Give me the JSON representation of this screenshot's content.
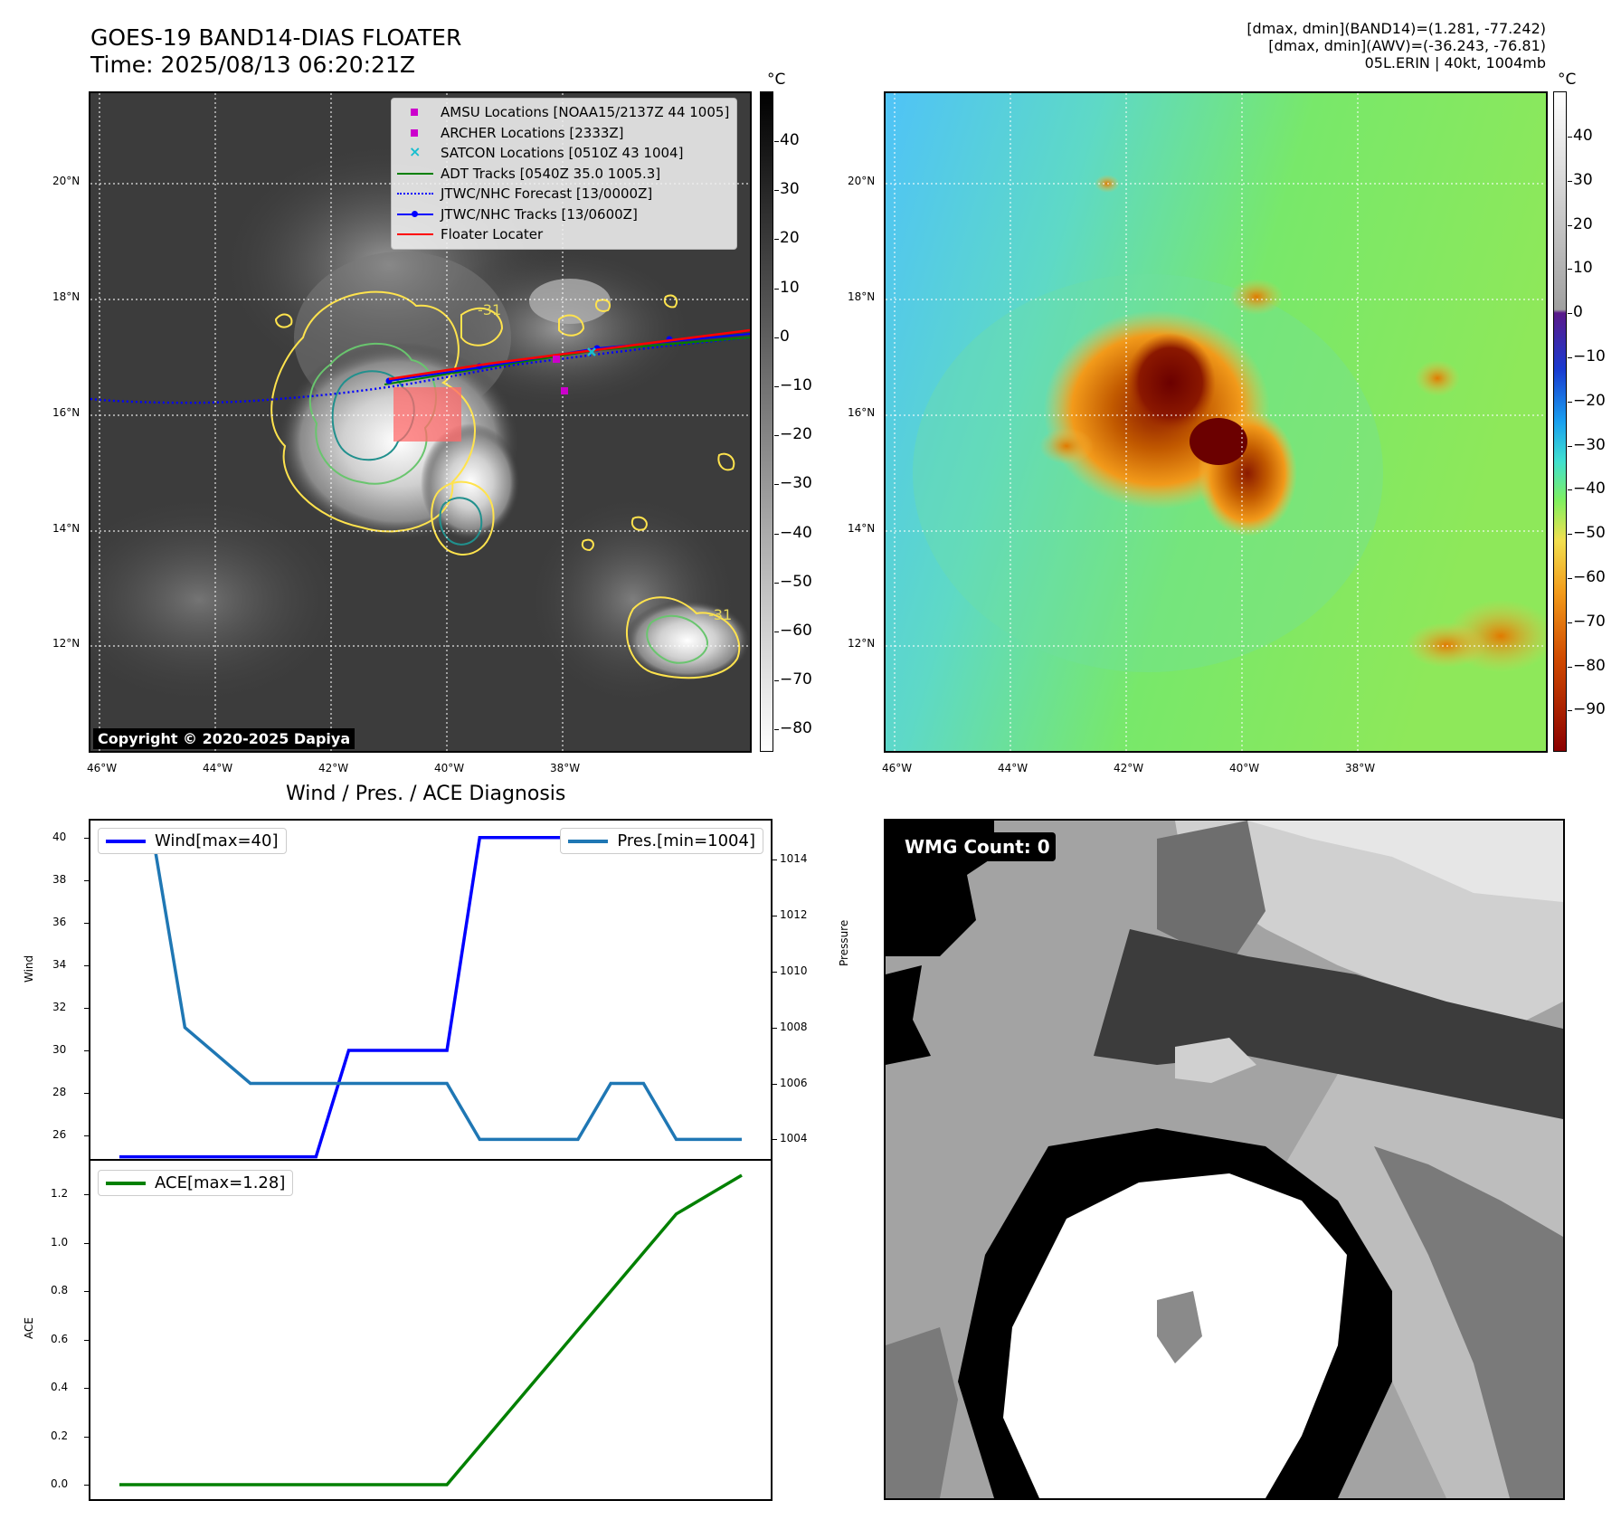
{
  "header": {
    "title_line1": "GOES-19 BAND14-DIAS FLOATER",
    "title_line2": "Time: 2025/08/13 06:20:21Z",
    "right_line1": "[dmax, dmin](BAND14)=(1.281, -77.242)",
    "right_line2": "[dmax, dmin](AWV)=(-36.243, -76.81)",
    "right_line3": "05L.ERIN | 40kt, 1004mb"
  },
  "map1": {
    "legend": [
      {
        "label": "AMSU Locations [NOAA15/2137Z 44 1005]",
        "icon": "square-marker",
        "color": "#cc00cc"
      },
      {
        "label": "ARCHER Locations [2333Z]",
        "icon": "square-marker",
        "color": "#cc00cc"
      },
      {
        "label": "SATCON Locations [0510Z 43 1004]",
        "icon": "x-marker",
        "color": "#17becf"
      },
      {
        "label": "ADT Tracks [0540Z 35.0 1005.3]",
        "icon": "solid-line",
        "color": "#008000"
      },
      {
        "label": "JTWC/NHC Forecast [13/0000Z]",
        "icon": "dotted-line",
        "color": "#0000ff"
      },
      {
        "label": "JTWC/NHC Tracks [13/0600Z]",
        "icon": "dot-line",
        "color": "#0000ff"
      },
      {
        "label": "Floater Locater",
        "icon": "solid-line",
        "color": "#ff0000"
      }
    ],
    "copyright": "Copyright © 2020-2025 Dapiya",
    "contour_label_1": "-31",
    "contour_label_2": "-31",
    "cb_unit": "°C",
    "cb_ticks": [
      "40",
      "30",
      "20",
      "10",
      "0",
      "−10",
      "−20",
      "−30",
      "−40",
      "−50",
      "−60",
      "−70",
      "−80"
    ]
  },
  "map2": {
    "cb_unit": "°C",
    "cb_ticks": [
      "40",
      "30",
      "20",
      "10",
      "0",
      "−10",
      "−20",
      "−30",
      "−40",
      "−50",
      "−60",
      "−70",
      "−80",
      "−90"
    ]
  },
  "axes": {
    "lat_labels": [
      "20°N",
      "18°N",
      "16°N",
      "14°N",
      "12°N"
    ],
    "lon_labels": [
      "46°W",
      "44°W",
      "42°W",
      "40°W",
      "38°W"
    ]
  },
  "chart_data": [
    {
      "type": "line",
      "title": "Wind / Pres. / ACE Diagnosis",
      "ylabel": "Wind",
      "y2label": "Pressure",
      "ylim": [
        24.9,
        40.8
      ],
      "y2lim": [
        1003.3,
        1015.4
      ],
      "yticks": [
        26,
        28,
        30,
        32,
        34,
        36,
        38,
        40
      ],
      "y2ticks": [
        1004,
        1006,
        1008,
        1010,
        1012,
        1014
      ],
      "x": [
        0,
        1,
        2,
        3,
        4,
        5,
        6,
        7,
        8,
        9,
        10,
        11,
        12,
        13,
        14,
        15,
        16,
        17,
        18,
        19
      ],
      "series": [
        {
          "name": "Wind[max=40]",
          "axis": "left",
          "color": "#0000ff",
          "values": [
            25,
            25,
            25,
            25,
            25,
            25,
            25,
            30,
            30,
            30,
            30,
            40,
            40,
            40,
            40,
            40,
            40,
            40,
            40,
            40
          ]
        },
        {
          "name": "Pres.[min=1004]",
          "axis": "right",
          "color": "#1f77b4",
          "values": [
            1015,
            1015,
            1008,
            1007,
            1006,
            1006,
            1006,
            1006,
            1006,
            1006,
            1006,
            1004,
            1004,
            1004,
            1004,
            1006,
            1006,
            1004,
            1004,
            1004
          ]
        }
      ]
    },
    {
      "type": "line",
      "ylabel": "ACE",
      "ylim": [
        -0.06,
        1.34
      ],
      "yticks": [
        0.0,
        0.2,
        0.4,
        0.6,
        0.8,
        1.0,
        1.2
      ],
      "ytick_labels": [
        "0.0",
        "0.2",
        "0.4",
        "0.6",
        "0.8",
        "1.0",
        "1.2"
      ],
      "x": [
        0,
        1,
        2,
        3,
        4,
        5,
        6,
        7,
        8,
        9,
        10,
        11,
        12,
        13,
        14,
        15,
        16,
        17,
        18,
        19
      ],
      "series": [
        {
          "name": "ACE[max=1.28]",
          "color": "#008000",
          "values": [
            0,
            0,
            0,
            0,
            0,
            0,
            0,
            0,
            0,
            0,
            0,
            0.16,
            0.32,
            0.48,
            0.64,
            0.8,
            0.96,
            1.12,
            1.2,
            1.28
          ]
        }
      ]
    }
  ],
  "wmg": {
    "label": "WMG Count: 0"
  }
}
